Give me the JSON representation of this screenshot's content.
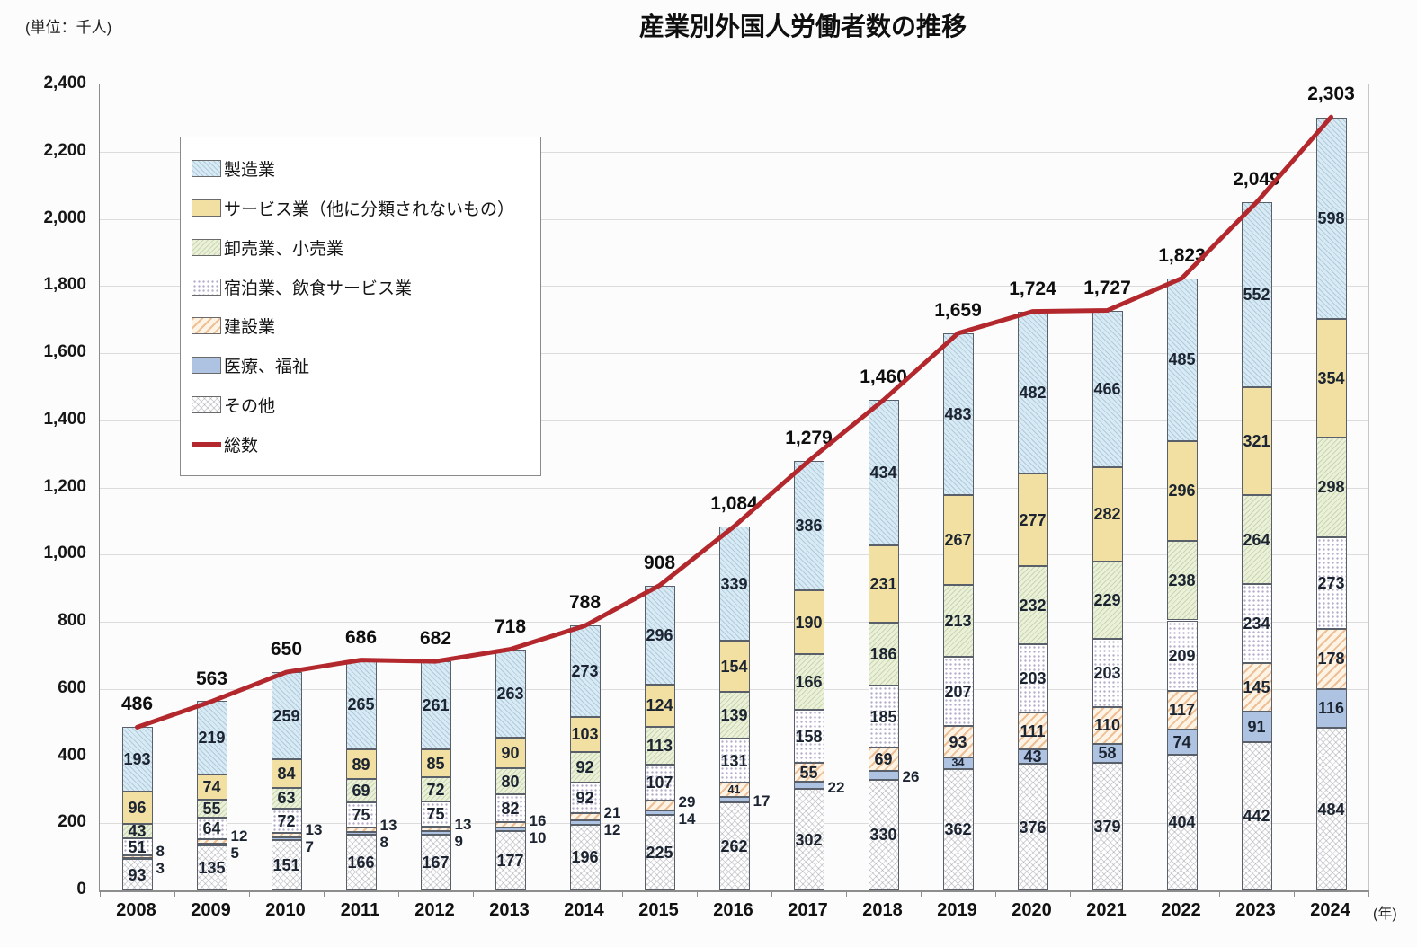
{
  "title": "産業別外国人労働者数の推移",
  "unit_label": "(単位：千人)",
  "year_axis_label": "(年)",
  "accent_colors": {
    "total_line": "#b3282d",
    "manufacturing_fill": "#d8eaf4",
    "services_fill": "#f1e0a2",
    "wholesale_fill": "#eaf1d8",
    "accommodation_fill": "#ffffff",
    "construction_fill": "#fdf4e5",
    "medical_fill": "#aec3e1",
    "others_fill": "#ffffff"
  },
  "chart_data": {
    "type": "bar",
    "stacked": true,
    "grid": true,
    "legend_position": "upper-left",
    "ylim": [
      0,
      2400
    ],
    "ytick_step": 200,
    "xlabel_suffix": "(年)",
    "ylabel_unit": "千人",
    "categories": [
      "2008",
      "2009",
      "2010",
      "2011",
      "2012",
      "2013",
      "2014",
      "2015",
      "2016",
      "2017",
      "2018",
      "2019",
      "2020",
      "2021",
      "2022",
      "2023",
      "2024"
    ],
    "series": [
      {
        "key": "others",
        "name": "その他",
        "fill": "#ffffff",
        "pattern": "crosshatch",
        "values": [
          93,
          135,
          151,
          166,
          167,
          177,
          196,
          225,
          262,
          302,
          330,
          362,
          376,
          379,
          404,
          442,
          484
        ]
      },
      {
        "key": "medical",
        "name": "医療、福祉",
        "fill": "#aec3e1",
        "pattern": "solid",
        "values": [
          3,
          5,
          7,
          8,
          9,
          10,
          12,
          14,
          17,
          22,
          26,
          34,
          43,
          58,
          74,
          91,
          116
        ]
      },
      {
        "key": "construction",
        "name": "建設業",
        "fill": "#fdf4e5",
        "pattern": "diag-orange",
        "values": [
          8,
          12,
          13,
          13,
          13,
          16,
          21,
          29,
          41,
          55,
          69,
          93,
          111,
          110,
          117,
          145,
          178
        ]
      },
      {
        "key": "accommodation",
        "name": "宿泊業、飲食サービス業",
        "fill": "#ffffff",
        "pattern": "dots",
        "values": [
          51,
          64,
          72,
          75,
          75,
          82,
          92,
          107,
          131,
          158,
          185,
          207,
          203,
          203,
          209,
          234,
          273
        ]
      },
      {
        "key": "wholesale",
        "name": "卸売業、小売業",
        "fill": "#eaf1d8",
        "pattern": "diag-green",
        "values": [
          43,
          55,
          63,
          69,
          72,
          80,
          92,
          113,
          139,
          166,
          186,
          213,
          232,
          229,
          238,
          264,
          298
        ]
      },
      {
        "key": "services",
        "name": "サービス業（他に分類されないもの）",
        "fill": "#f1e0a2",
        "pattern": "solid",
        "values": [
          96,
          74,
          84,
          89,
          85,
          90,
          103,
          124,
          154,
          190,
          231,
          267,
          277,
          282,
          296,
          321,
          354
        ]
      },
      {
        "key": "manufacturing",
        "name": "製造業",
        "fill": "#d8eaf4",
        "pattern": "diag-blue",
        "values": [
          193,
          219,
          259,
          265,
          261,
          263,
          273,
          296,
          339,
          386,
          434,
          483,
          482,
          466,
          485,
          552,
          598
        ]
      }
    ],
    "line": {
      "key": "total",
      "name": "総数",
      "color": "#b3282d",
      "values": [
        486,
        563,
        650,
        686,
        682,
        718,
        788,
        908,
        1084,
        1279,
        1460,
        1659,
        1724,
        1727,
        1823,
        2049,
        2303
      ]
    },
    "legend_order": [
      "manufacturing",
      "services",
      "wholesale",
      "accommodation",
      "construction",
      "medical",
      "others",
      "total"
    ]
  }
}
